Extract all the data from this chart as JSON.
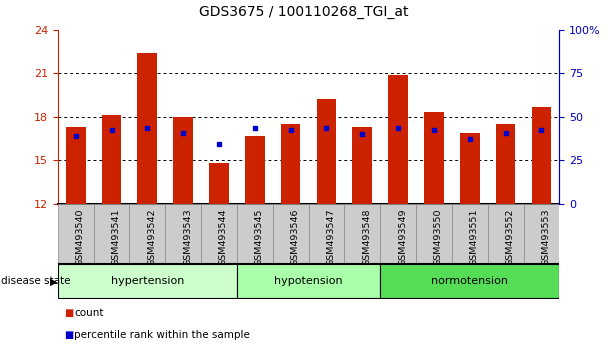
{
  "title": "GDS3675 / 100110268_TGI_at",
  "samples": [
    "GSM493540",
    "GSM493541",
    "GSM493542",
    "GSM493543",
    "GSM493544",
    "GSM493545",
    "GSM493546",
    "GSM493547",
    "GSM493548",
    "GSM493549",
    "GSM493550",
    "GSM493551",
    "GSM493552",
    "GSM493553"
  ],
  "bar_heights": [
    17.3,
    18.1,
    22.4,
    18.0,
    14.8,
    16.7,
    17.5,
    19.2,
    17.3,
    20.9,
    18.3,
    16.9,
    17.5,
    18.7
  ],
  "blue_dot_y": [
    16.7,
    17.1,
    17.2,
    16.9,
    16.1,
    17.2,
    17.1,
    17.2,
    16.8,
    17.2,
    17.1,
    16.5,
    16.9,
    17.1
  ],
  "bar_color": "#cc2200",
  "dot_color": "#0000cc",
  "ymin": 12,
  "ymax": 24,
  "yticks": [
    12,
    15,
    18,
    21,
    24
  ],
  "right_yticks": [
    0,
    25,
    50,
    75,
    100
  ],
  "right_ytick_labels": [
    "0",
    "25",
    "50",
    "75",
    "100%"
  ],
  "groups": [
    {
      "label": "hypertension",
      "start": 0,
      "end": 5,
      "color": "#ccffcc"
    },
    {
      "label": "hypotension",
      "start": 5,
      "end": 9,
      "color": "#aaffaa"
    },
    {
      "label": "normotension",
      "start": 9,
      "end": 14,
      "color": "#55dd55"
    }
  ],
  "disease_state_label": "disease state",
  "legend_items": [
    {
      "label": "count",
      "color": "#cc2200"
    },
    {
      "label": "percentile rank within the sample",
      "color": "#0000cc"
    }
  ],
  "bar_width": 0.55,
  "background_color": "#ffffff",
  "left_axis_color": "#cc2200",
  "right_axis_color": "#0000bb",
  "tick_label_bg": "#cccccc",
  "grid_yticks": [
    15,
    18,
    21
  ]
}
